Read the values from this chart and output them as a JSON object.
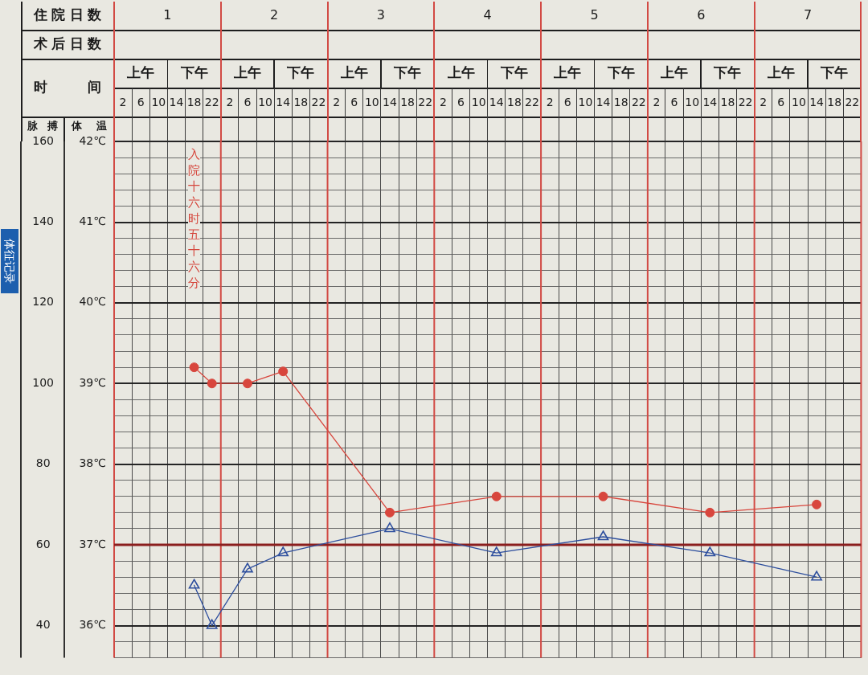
{
  "chart_data": {
    "type": "line",
    "categories": [
      "2",
      "6",
      "10",
      "14",
      "18",
      "22",
      "2",
      "6",
      "10",
      "14",
      "18",
      "22",
      "2",
      "6",
      "10",
      "14",
      "18",
      "22",
      "2",
      "6",
      "10",
      "14",
      "18",
      "22",
      "2",
      "6",
      "10",
      "14",
      "18",
      "22",
      "2",
      "6",
      "10",
      "14",
      "18",
      "22",
      "2",
      "6",
      "10",
      "14",
      "18",
      "22"
    ],
    "xlabel": "时间",
    "ylabel": "脉搏",
    "ylim": [
      32,
      160
    ],
    "yticks": [
      {
        "value": 32,
        "label": null
      },
      {
        "value": 36,
        "label": null
      },
      40,
      {
        "value": 44,
        "label": null
      },
      {
        "value": 48,
        "label": null
      },
      {
        "value": 52,
        "label": null
      },
      {
        "value": 56,
        "label": null
      },
      60,
      {
        "value": 64,
        "label": null
      },
      {
        "value": 68,
        "label": null
      },
      {
        "value": 72,
        "label": null
      },
      {
        "value": 76,
        "label": null
      },
      80,
      {
        "value": 84,
        "label": null
      },
      {
        "value": 88,
        "label": null
      },
      {
        "value": 92,
        "label": null
      },
      {
        "value": 96,
        "label": null
      },
      100,
      {
        "value": 104,
        "label": null
      },
      {
        "value": 108,
        "label": null
      },
      {
        "value": 112,
        "label": null
      },
      {
        "value": 116,
        "label": null
      },
      120,
      {
        "value": 124,
        "label": null
      },
      {
        "value": 128,
        "label": null
      },
      {
        "value": 132,
        "label": null
      },
      {
        "value": 136,
        "label": null
      },
      140,
      {
        "value": 144,
        "label": null
      },
      {
        "value": 148,
        "label": null
      },
      {
        "value": 152,
        "label": null
      },
      {
        "value": 156,
        "label": null
      },
      160
    ],
    "y2label": "体温",
    "y2lim": [
      35.6,
      42
    ],
    "y2ticks": [
      {
        "value": 36,
        "label": "36℃"
      },
      {
        "value": 37,
        "label": "37℃"
      },
      {
        "value": 38,
        "label": "38℃"
      },
      {
        "value": 39,
        "label": "39℃"
      },
      {
        "value": 40,
        "label": "40℃"
      },
      {
        "value": 41,
        "label": "41℃"
      },
      {
        "value": 42,
        "label": "42℃"
      }
    ],
    "series": [
      {
        "color": "#d8463d",
        "marker": "circle",
        "values": [
          null,
          null,
          null,
          null,
          104,
          100,
          null,
          100,
          null,
          103,
          null,
          null,
          null,
          null,
          null,
          68,
          null,
          null,
          null,
          null,
          null,
          72,
          null,
          null,
          null,
          null,
          null,
          72,
          null,
          null,
          null,
          null,
          null,
          68,
          null,
          null,
          null,
          null,
          null,
          70,
          null,
          null
        ]
      },
      {
        "color": "#2e4f9e",
        "marker": "triangle",
        "axis": "y2",
        "values": [
          null,
          null,
          null,
          null,
          36.5,
          36,
          null,
          36.7,
          null,
          36.9,
          null,
          null,
          null,
          null,
          null,
          37.2,
          null,
          null,
          null,
          null,
          null,
          36.9,
          null,
          null,
          null,
          null,
          null,
          37.1,
          null,
          null,
          null,
          null,
          null,
          36.9,
          null,
          null,
          null,
          null,
          null,
          36.6,
          null,
          null
        ]
      }
    ],
    "ref_lines": [
      {
        "axis": "y2",
        "value": 37,
        "color": "#8b1e1e"
      }
    ],
    "annotations": [
      "住院日数",
      "1",
      "2",
      "3",
      "4",
      "5",
      "6",
      "7",
      "术后日数",
      "上午",
      "下午",
      "上午",
      "下午",
      "上午",
      "下午",
      "上午",
      "下午",
      "上午",
      "下午",
      "上午",
      "下午",
      "上午",
      "下午",
      "入院十六时五十六分",
      "体征记录"
    ],
    "grid": true
  }
}
